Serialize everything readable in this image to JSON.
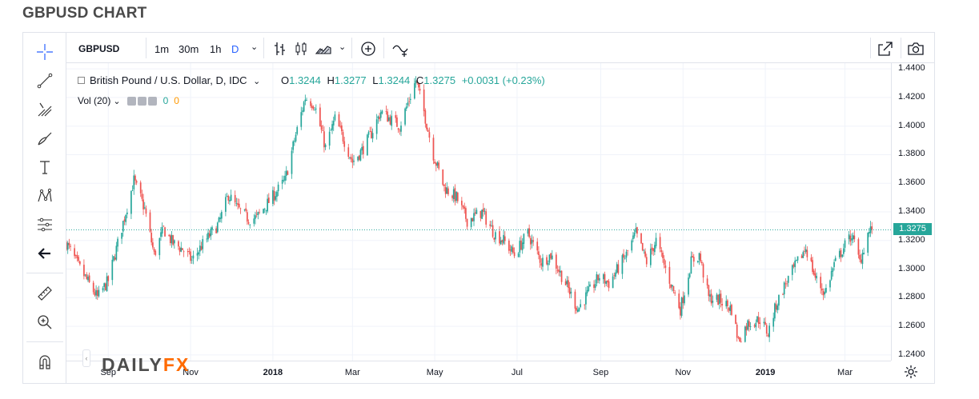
{
  "page_title": "GBPUSD CHART",
  "toolbar": {
    "symbol": "GBPUSD",
    "timeframes": [
      "1m",
      "30m",
      "1h",
      "D"
    ],
    "active_timeframe": "D",
    "icons": [
      "bars-icon",
      "candles-icon",
      "area-icon",
      "add-indicator-icon",
      "compare-icon",
      "fullscreen-icon",
      "camera-icon"
    ]
  },
  "left_tools": [
    "crosshair-icon",
    "trend-line-icon",
    "pitchfork-icon",
    "brush-icon",
    "text-icon",
    "pattern-icon",
    "measure-icon",
    "back-arrow-icon",
    "ruler-icon",
    "zoom-in-icon",
    "magnet-icon"
  ],
  "legend": {
    "title": "British Pound / U.S. Dollar, D, IDC",
    "open_label": "O",
    "open": "1.3244",
    "high_label": "H",
    "high": "1.3277",
    "low_label": "L",
    "low": "1.3244",
    "close_label": "C",
    "close": "1.3275",
    "change": "+0.0031 (+0.23%)"
  },
  "volume_legend": {
    "label": "Vol (20)",
    "value1": "0",
    "value2": "0"
  },
  "current_price_badge": "1.3275",
  "logo": {
    "text1": "DAILY",
    "text2": "FX"
  },
  "colors": {
    "up": "#26a69a",
    "down": "#ef5350",
    "active": "#2962ff",
    "logo_accent": "#ff6a00"
  },
  "chart_data": {
    "type": "candlestick",
    "title": "British Pound / U.S. Dollar, D, IDC",
    "ylim": [
      1.236,
      1.444
    ],
    "y_ticks": [
      "1.4400",
      "1.4200",
      "1.4000",
      "1.3800",
      "1.3600",
      "1.3400",
      "1.3200",
      "1.3000",
      "1.2800",
      "1.2600",
      "1.2400"
    ],
    "x_ticks": [
      {
        "label": "Sep",
        "bold": false
      },
      {
        "label": "Nov",
        "bold": false
      },
      {
        "label": "2018",
        "bold": true
      },
      {
        "label": "Mar",
        "bold": false
      },
      {
        "label": "May",
        "bold": false
      },
      {
        "label": "Jul",
        "bold": false
      },
      {
        "label": "Sep",
        "bold": false
      },
      {
        "label": "Nov",
        "bold": false
      },
      {
        "label": "2019",
        "bold": true
      },
      {
        "label": "Mar",
        "bold": false
      }
    ],
    "last_price": 1.3275,
    "trend_anchors": [
      [
        "2017-08-01",
        1.318
      ],
      [
        "2017-08-10",
        1.302
      ],
      [
        "2017-08-24",
        1.28
      ],
      [
        "2017-09-01",
        1.292
      ],
      [
        "2017-09-20",
        1.362
      ],
      [
        "2017-09-28",
        1.342
      ],
      [
        "2017-10-05",
        1.31
      ],
      [
        "2017-10-12",
        1.328
      ],
      [
        "2017-10-19",
        1.318
      ],
      [
        "2017-10-26",
        1.314
      ],
      [
        "2017-11-02",
        1.306
      ],
      [
        "2017-11-09",
        1.316
      ],
      [
        "2017-11-22",
        1.332
      ],
      [
        "2017-11-29",
        1.352
      ],
      [
        "2017-12-06",
        1.342
      ],
      [
        "2017-12-14",
        1.335
      ],
      [
        "2017-12-20",
        1.336
      ],
      [
        "2018-01-02",
        1.352
      ],
      [
        "2018-01-10",
        1.362
      ],
      [
        "2018-01-17",
        1.39
      ],
      [
        "2018-01-25",
        1.42
      ],
      [
        "2018-02-01",
        1.415
      ],
      [
        "2018-02-09",
        1.385
      ],
      [
        "2018-02-16",
        1.405
      ],
      [
        "2018-02-22",
        1.392
      ],
      [
        "2018-03-01",
        1.375
      ],
      [
        "2018-03-08",
        1.383
      ],
      [
        "2018-03-15",
        1.395
      ],
      [
        "2018-03-22",
        1.41
      ],
      [
        "2018-03-29",
        1.405
      ],
      [
        "2018-04-05",
        1.4
      ],
      [
        "2018-04-17",
        1.432
      ],
      [
        "2018-04-23",
        1.41
      ],
      [
        "2018-04-30",
        1.38
      ],
      [
        "2018-05-08",
        1.357
      ],
      [
        "2018-05-17",
        1.35
      ],
      [
        "2018-05-25",
        1.334
      ],
      [
        "2018-06-05",
        1.34
      ],
      [
        "2018-06-14",
        1.325
      ],
      [
        "2018-06-21",
        1.32
      ],
      [
        "2018-06-29",
        1.31
      ],
      [
        "2018-07-09",
        1.325
      ],
      [
        "2018-07-19",
        1.305
      ],
      [
        "2018-07-26",
        1.31
      ],
      [
        "2018-08-06",
        1.29
      ],
      [
        "2018-08-15",
        1.272
      ],
      [
        "2018-08-24",
        1.285
      ],
      [
        "2018-08-31",
        1.295
      ],
      [
        "2018-09-07",
        1.29
      ],
      [
        "2018-09-20",
        1.31
      ],
      [
        "2018-09-27",
        1.325
      ],
      [
        "2018-10-05",
        1.305
      ],
      [
        "2018-10-12",
        1.32
      ],
      [
        "2018-10-19",
        1.3
      ],
      [
        "2018-10-30",
        1.272
      ],
      [
        "2018-11-07",
        1.305
      ],
      [
        "2018-11-13",
        1.31
      ],
      [
        "2018-11-20",
        1.28
      ],
      [
        "2018-11-29",
        1.278
      ],
      [
        "2018-12-07",
        1.272
      ],
      [
        "2018-12-12",
        1.25
      ],
      [
        "2018-12-19",
        1.262
      ],
      [
        "2018-12-28",
        1.265
      ],
      [
        "2019-01-03",
        1.255
      ],
      [
        "2019-01-09",
        1.275
      ],
      [
        "2019-01-16",
        1.29
      ],
      [
        "2019-01-25",
        1.305
      ],
      [
        "2019-01-31",
        1.315
      ],
      [
        "2019-02-07",
        1.294
      ],
      [
        "2019-02-14",
        1.283
      ],
      [
        "2019-02-21",
        1.303
      ],
      [
        "2019-02-28",
        1.315
      ],
      [
        "2019-03-06",
        1.324
      ],
      [
        "2019-03-12",
        1.305
      ],
      [
        "2019-03-18",
        1.325
      ],
      [
        "2019-03-21",
        1.3275
      ]
    ]
  }
}
